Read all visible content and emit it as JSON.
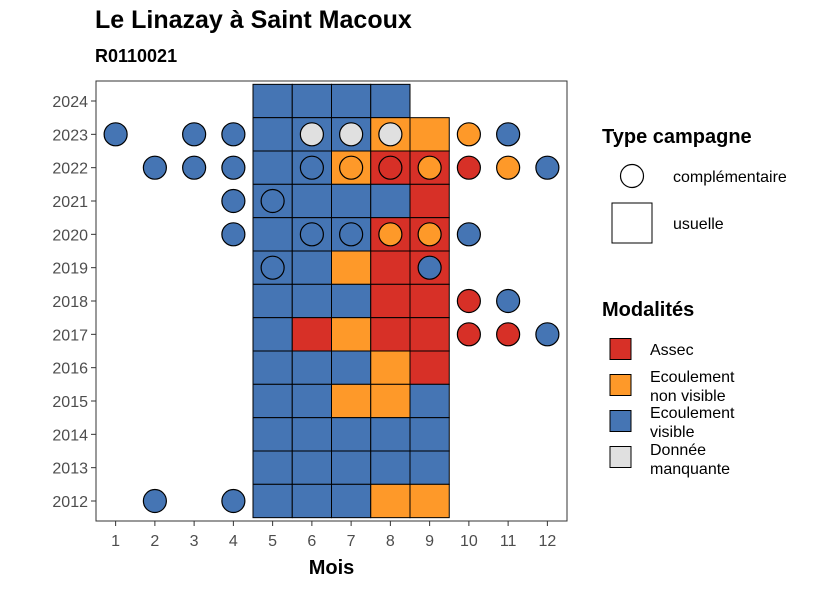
{
  "chart_data": {
    "type": "heatmap",
    "title": "Le Linazay à Saint Macoux",
    "subtitle": "R0110021",
    "xlabel": "Mois",
    "ylabel": "",
    "x_ticks": [
      1,
      2,
      3,
      4,
      5,
      6,
      7,
      8,
      9,
      10,
      11,
      12
    ],
    "y_ticks": [
      2012,
      2013,
      2014,
      2015,
      2016,
      2017,
      2018,
      2019,
      2020,
      2021,
      2022,
      2023,
      2024
    ],
    "xlim": [
      0.5,
      12.5
    ],
    "ylim": [
      2011.4,
      2024.6
    ],
    "colors": {
      "assec": "#d73027",
      "nonvisible": "#fe9929",
      "visible": "#4575b4",
      "manquante": "#e0e0e0"
    },
    "usuelle": [
      {
        "year": 2024,
        "month": 5,
        "mod": "visible"
      },
      {
        "year": 2024,
        "month": 6,
        "mod": "visible"
      },
      {
        "year": 2024,
        "month": 7,
        "mod": "visible"
      },
      {
        "year": 2024,
        "month": 8,
        "mod": "visible"
      },
      {
        "year": 2023,
        "month": 5,
        "mod": "visible"
      },
      {
        "year": 2023,
        "month": 6,
        "mod": "visible"
      },
      {
        "year": 2023,
        "month": 7,
        "mod": "visible"
      },
      {
        "year": 2023,
        "month": 8,
        "mod": "nonvisible"
      },
      {
        "year": 2023,
        "month": 9,
        "mod": "nonvisible"
      },
      {
        "year": 2022,
        "month": 5,
        "mod": "visible"
      },
      {
        "year": 2022,
        "month": 6,
        "mod": "visible"
      },
      {
        "year": 2022,
        "month": 7,
        "mod": "nonvisible"
      },
      {
        "year": 2022,
        "month": 8,
        "mod": "assec"
      },
      {
        "year": 2022,
        "month": 9,
        "mod": "assec"
      },
      {
        "year": 2021,
        "month": 5,
        "mod": "visible"
      },
      {
        "year": 2021,
        "month": 6,
        "mod": "visible"
      },
      {
        "year": 2021,
        "month": 7,
        "mod": "visible"
      },
      {
        "year": 2021,
        "month": 8,
        "mod": "visible"
      },
      {
        "year": 2021,
        "month": 9,
        "mod": "assec"
      },
      {
        "year": 2020,
        "month": 5,
        "mod": "visible"
      },
      {
        "year": 2020,
        "month": 6,
        "mod": "visible"
      },
      {
        "year": 2020,
        "month": 7,
        "mod": "visible"
      },
      {
        "year": 2020,
        "month": 8,
        "mod": "assec"
      },
      {
        "year": 2020,
        "month": 9,
        "mod": "assec"
      },
      {
        "year": 2019,
        "month": 5,
        "mod": "visible"
      },
      {
        "year": 2019,
        "month": 6,
        "mod": "visible"
      },
      {
        "year": 2019,
        "month": 7,
        "mod": "nonvisible"
      },
      {
        "year": 2019,
        "month": 8,
        "mod": "assec"
      },
      {
        "year": 2019,
        "month": 9,
        "mod": "assec"
      },
      {
        "year": 2018,
        "month": 5,
        "mod": "visible"
      },
      {
        "year": 2018,
        "month": 6,
        "mod": "visible"
      },
      {
        "year": 2018,
        "month": 7,
        "mod": "visible"
      },
      {
        "year": 2018,
        "month": 8,
        "mod": "assec"
      },
      {
        "year": 2018,
        "month": 9,
        "mod": "assec"
      },
      {
        "year": 2017,
        "month": 5,
        "mod": "visible"
      },
      {
        "year": 2017,
        "month": 6,
        "mod": "assec"
      },
      {
        "year": 2017,
        "month": 7,
        "mod": "nonvisible"
      },
      {
        "year": 2017,
        "month": 8,
        "mod": "assec"
      },
      {
        "year": 2017,
        "month": 9,
        "mod": "assec"
      },
      {
        "year": 2016,
        "month": 5,
        "mod": "visible"
      },
      {
        "year": 2016,
        "month": 6,
        "mod": "visible"
      },
      {
        "year": 2016,
        "month": 7,
        "mod": "visible"
      },
      {
        "year": 2016,
        "month": 8,
        "mod": "nonvisible"
      },
      {
        "year": 2016,
        "month": 9,
        "mod": "assec"
      },
      {
        "year": 2015,
        "month": 5,
        "mod": "visible"
      },
      {
        "year": 2015,
        "month": 6,
        "mod": "visible"
      },
      {
        "year": 2015,
        "month": 7,
        "mod": "nonvisible"
      },
      {
        "year": 2015,
        "month": 8,
        "mod": "nonvisible"
      },
      {
        "year": 2015,
        "month": 9,
        "mod": "visible"
      },
      {
        "year": 2014,
        "month": 5,
        "mod": "visible"
      },
      {
        "year": 2014,
        "month": 6,
        "mod": "visible"
      },
      {
        "year": 2014,
        "month": 7,
        "mod": "visible"
      },
      {
        "year": 2014,
        "month": 8,
        "mod": "visible"
      },
      {
        "year": 2014,
        "month": 9,
        "mod": "visible"
      },
      {
        "year": 2013,
        "month": 5,
        "mod": "visible"
      },
      {
        "year": 2013,
        "month": 6,
        "mod": "visible"
      },
      {
        "year": 2013,
        "month": 7,
        "mod": "visible"
      },
      {
        "year": 2013,
        "month": 8,
        "mod": "visible"
      },
      {
        "year": 2013,
        "month": 9,
        "mod": "visible"
      },
      {
        "year": 2012,
        "month": 5,
        "mod": "visible"
      },
      {
        "year": 2012,
        "month": 6,
        "mod": "visible"
      },
      {
        "year": 2012,
        "month": 7,
        "mod": "visible"
      },
      {
        "year": 2012,
        "month": 8,
        "mod": "nonvisible"
      },
      {
        "year": 2012,
        "month": 9,
        "mod": "nonvisible"
      }
    ],
    "complementaire": [
      {
        "year": 2023,
        "month": 1,
        "mod": "visible"
      },
      {
        "year": 2023,
        "month": 3,
        "mod": "visible"
      },
      {
        "year": 2023,
        "month": 4,
        "mod": "visible"
      },
      {
        "year": 2023,
        "month": 6,
        "mod": "manquante"
      },
      {
        "year": 2023,
        "month": 7,
        "mod": "manquante"
      },
      {
        "year": 2023,
        "month": 8,
        "mod": "manquante"
      },
      {
        "year": 2023,
        "month": 10,
        "mod": "nonvisible"
      },
      {
        "year": 2023,
        "month": 11,
        "mod": "visible"
      },
      {
        "year": 2022,
        "month": 2,
        "mod": "visible"
      },
      {
        "year": 2022,
        "month": 3,
        "mod": "visible"
      },
      {
        "year": 2022,
        "month": 4,
        "mod": "visible"
      },
      {
        "year": 2022,
        "month": 6,
        "mod": "visible"
      },
      {
        "year": 2022,
        "month": 7,
        "mod": "nonvisible"
      },
      {
        "year": 2022,
        "month": 8,
        "mod": "assec"
      },
      {
        "year": 2022,
        "month": 9,
        "mod": "nonvisible"
      },
      {
        "year": 2022,
        "month": 10,
        "mod": "assec"
      },
      {
        "year": 2022,
        "month": 11,
        "mod": "nonvisible"
      },
      {
        "year": 2022,
        "month": 12,
        "mod": "visible"
      },
      {
        "year": 2021,
        "month": 4,
        "mod": "visible"
      },
      {
        "year": 2021,
        "month": 5,
        "mod": "visible"
      },
      {
        "year": 2020,
        "month": 4,
        "mod": "visible"
      },
      {
        "year": 2020,
        "month": 6,
        "mod": "visible"
      },
      {
        "year": 2020,
        "month": 7,
        "mod": "visible"
      },
      {
        "year": 2020,
        "month": 8,
        "mod": "nonvisible"
      },
      {
        "year": 2020,
        "month": 9,
        "mod": "nonvisible"
      },
      {
        "year": 2020,
        "month": 10,
        "mod": "visible"
      },
      {
        "year": 2019,
        "month": 5,
        "mod": "visible"
      },
      {
        "year": 2019,
        "month": 9,
        "mod": "visible"
      },
      {
        "year": 2018,
        "month": 10,
        "mod": "assec"
      },
      {
        "year": 2018,
        "month": 11,
        "mod": "visible"
      },
      {
        "year": 2017,
        "month": 10,
        "mod": "assec"
      },
      {
        "year": 2017,
        "month": 11,
        "mod": "assec"
      },
      {
        "year": 2017,
        "month": 12,
        "mod": "visible"
      },
      {
        "year": 2012,
        "month": 2,
        "mod": "visible"
      },
      {
        "year": 2012,
        "month": 4,
        "mod": "visible"
      }
    ]
  },
  "legend": {
    "type_title": "Type campagne",
    "type_items": [
      {
        "key": "circle",
        "label": "complémentaire"
      },
      {
        "key": "square",
        "label": "usuelle"
      }
    ],
    "mod_title": "Modalités",
    "mod_items": [
      {
        "key": "assec",
        "label": [
          "Assec"
        ]
      },
      {
        "key": "nonvisible",
        "label": [
          "Ecoulement",
          "non visible"
        ]
      },
      {
        "key": "visible",
        "label": [
          "Ecoulement",
          "visible"
        ]
      },
      {
        "key": "manquante",
        "label": [
          "Donnée",
          "manquante"
        ]
      }
    ]
  }
}
